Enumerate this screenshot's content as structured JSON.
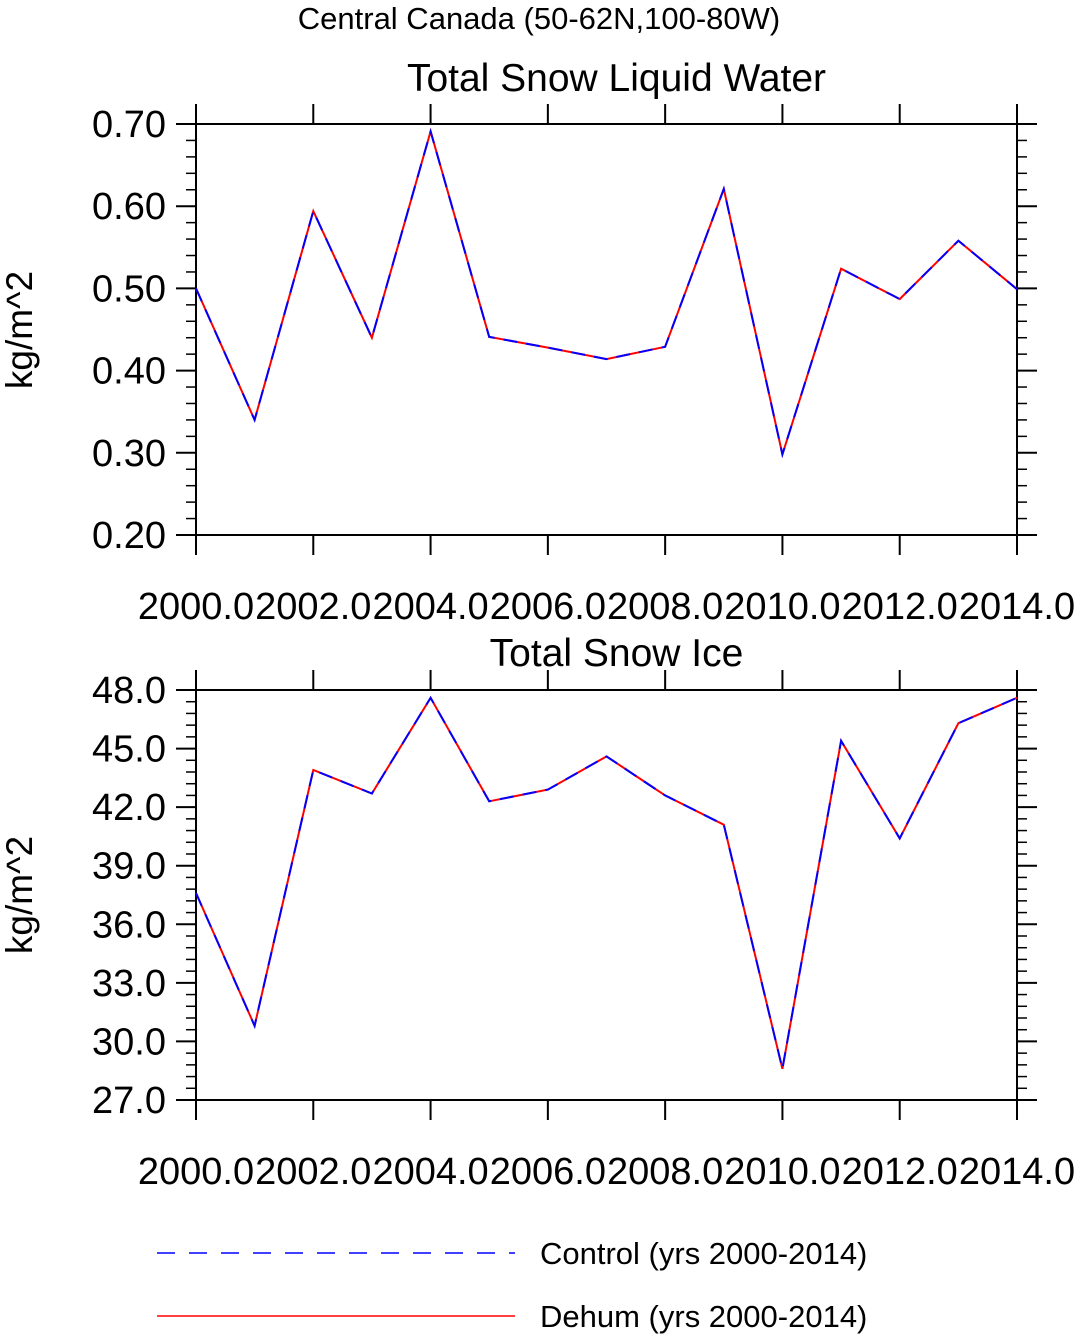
{
  "title": "Central Canada (50-62N,100-80W)",
  "colors": {
    "control": "#0000ff",
    "dehum": "#ff0000",
    "axes": "#000000"
  },
  "legend": {
    "placement": "bottom",
    "items": [
      {
        "label": "Control (yrs 2000-2014)",
        "style": "dashed",
        "color": "#0000ff"
      },
      {
        "label": "Dehum (yrs 2000-2014)",
        "style": "solid",
        "color": "#ff0000"
      }
    ]
  },
  "chart_data": [
    {
      "type": "line",
      "title": "Total Snow Liquid Water",
      "xlabel": "",
      "ylabel": "kg/m^2",
      "xlim": [
        2000,
        2014
      ],
      "ylim": [
        0.2,
        0.7
      ],
      "xticks": [
        2000,
        2002,
        2004,
        2006,
        2008,
        2010,
        2012,
        2014
      ],
      "xtick_labels": [
        "2000.0",
        "2002.0",
        "2004.0",
        "2006.0",
        "2008.0",
        "2010.0",
        "2012.0",
        "2014.0"
      ],
      "yticks": [
        0.2,
        0.3,
        0.4,
        0.5,
        0.6,
        0.7
      ],
      "ytick_labels": [
        "0.20",
        "0.30",
        "0.40",
        "0.50",
        "0.60",
        "0.70"
      ],
      "x": [
        2000,
        2001,
        2002,
        2003,
        2004,
        2005,
        2006,
        2007,
        2008,
        2009,
        2010,
        2011,
        2012,
        2013,
        2014
      ],
      "series": [
        {
          "name": "Control (yrs 2000-2014)",
          "style": "dashed",
          "color": "#0000ff",
          "values": [
            0.5,
            0.34,
            0.594,
            0.44,
            0.691,
            0.441,
            0.428,
            0.414,
            0.429,
            0.621,
            0.298,
            0.524,
            0.487,
            0.558,
            0.499
          ]
        },
        {
          "name": "Dehum (yrs 2000-2014)",
          "style": "solid",
          "color": "#ff0000",
          "values": [
            0.5,
            0.34,
            0.594,
            0.44,
            0.691,
            0.441,
            0.428,
            0.414,
            0.429,
            0.621,
            0.298,
            0.524,
            0.487,
            0.558,
            0.499
          ]
        }
      ]
    },
    {
      "type": "line",
      "title": "Total Snow Ice",
      "xlabel": "",
      "ylabel": "kg/m^2",
      "xlim": [
        2000,
        2014
      ],
      "ylim": [
        27.0,
        48.0
      ],
      "xticks": [
        2000,
        2002,
        2004,
        2006,
        2008,
        2010,
        2012,
        2014
      ],
      "xtick_labels": [
        "2000.0",
        "2002.0",
        "2004.0",
        "2006.0",
        "2008.0",
        "2010.0",
        "2012.0",
        "2014.0"
      ],
      "yticks": [
        27,
        30,
        33,
        36,
        39,
        42,
        45,
        48
      ],
      "ytick_labels": [
        "27.0",
        "30.0",
        "33.0",
        "36.0",
        "39.0",
        "42.0",
        "45.0",
        "48.0"
      ],
      "x": [
        2000,
        2001,
        2002,
        2003,
        2004,
        2005,
        2006,
        2007,
        2008,
        2009,
        2010,
        2011,
        2012,
        2013,
        2014
      ],
      "series": [
        {
          "name": "Control (yrs 2000-2014)",
          "style": "dashed",
          "color": "#0000ff",
          "values": [
            37.6,
            30.8,
            43.9,
            42.7,
            47.6,
            42.3,
            42.9,
            44.6,
            42.6,
            41.1,
            28.6,
            45.4,
            40.4,
            46.3,
            47.6
          ]
        },
        {
          "name": "Dehum (yrs 2000-2014)",
          "style": "solid",
          "color": "#ff0000",
          "values": [
            37.6,
            30.8,
            43.9,
            42.7,
            47.6,
            42.3,
            42.9,
            44.6,
            42.6,
            41.1,
            28.6,
            45.4,
            40.4,
            46.3,
            47.6
          ]
        }
      ]
    }
  ]
}
